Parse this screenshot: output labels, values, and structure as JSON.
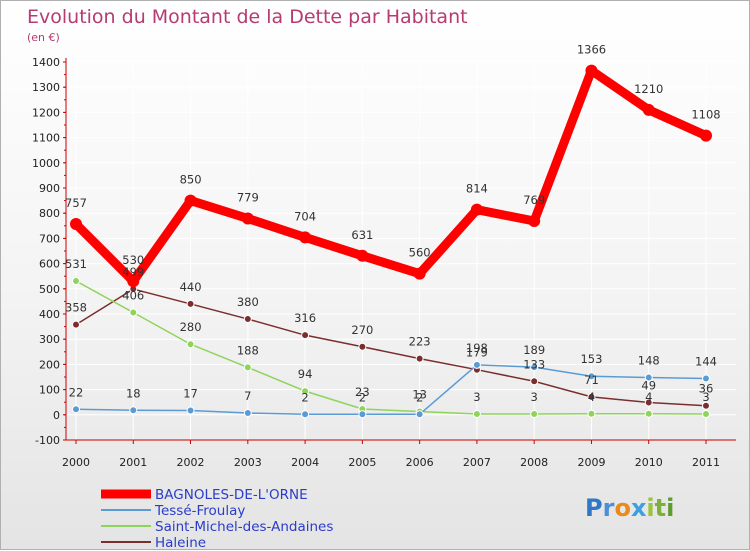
{
  "chart_data": {
    "type": "line",
    "title": "Evolution du Montant de la Dette par Habitant",
    "subtitle": "(en €)",
    "xlabel": "",
    "ylabel": "",
    "categories": [
      "2000",
      "2001",
      "2002",
      "2003",
      "2004",
      "2005",
      "2006",
      "2007",
      "2008",
      "2009",
      "2010",
      "2011"
    ],
    "ylim": [
      -100,
      1400
    ],
    "yticks": [
      -100,
      0,
      100,
      200,
      300,
      400,
      500,
      600,
      700,
      800,
      900,
      1000,
      1100,
      1200,
      1300,
      1400
    ],
    "grid": true,
    "series": [
      {
        "name": "BAGNOLES-DE-L'ORNE",
        "color": "#ff0000",
        "values": [
          757,
          530,
          850,
          779,
          704,
          631,
          560,
          814,
          769,
          1366,
          1210,
          1108
        ],
        "labels": [
          "757",
          "530",
          "850",
          "779",
          "704",
          "631",
          "560",
          "814",
          "769",
          "1366",
          "1210",
          "1108"
        ]
      },
      {
        "name": "Tessé-Froulay",
        "color": "#5b9bd5",
        "values": [
          22,
          18,
          17,
          7,
          2,
          2,
          2,
          198,
          189,
          153,
          148,
          144
        ],
        "labels": [
          "22",
          "18",
          "17",
          "7",
          "2",
          "2",
          "2",
          "198",
          "189",
          "153",
          "148",
          "144"
        ]
      },
      {
        "name": "Saint-Michel-des-Andaines",
        "color": "#8ed45b",
        "values": [
          531,
          406,
          280,
          188,
          94,
          23,
          13,
          3,
          3,
          4,
          4,
          3
        ],
        "labels": [
          "531",
          "406",
          "280",
          "188",
          "94",
          "23",
          "13",
          "3",
          "3",
          "4",
          "4",
          "3"
        ]
      },
      {
        "name": "Haleine",
        "color": "#7a2e2e",
        "values": [
          358,
          499,
          440,
          380,
          316,
          270,
          223,
          179,
          133,
          71,
          49,
          36
        ],
        "labels": [
          "358",
          "499",
          "440",
          "380",
          "316",
          "270",
          "223",
          "179",
          "133",
          "71",
          "49",
          "36"
        ]
      }
    ]
  },
  "legend": [
    {
      "label": "BAGNOLES-DE-L'ORNE",
      "color": "#ff0000"
    },
    {
      "label": "Tessé-Froulay",
      "color": "#5b9bd5"
    },
    {
      "label": "Saint-Michel-des-Andaines",
      "color": "#8ed45b"
    },
    {
      "label": "Haleine",
      "color": "#7a2e2e"
    }
  ],
  "logo": {
    "letters": [
      "P",
      "r",
      "o",
      "x",
      "i",
      "t",
      "i"
    ],
    "colors": [
      "#2f78c8",
      "#4d8ed8",
      "#e98a1a",
      "#3aa0e0",
      "#9bc43a",
      "#7bb03a",
      "#5a9e30"
    ]
  }
}
